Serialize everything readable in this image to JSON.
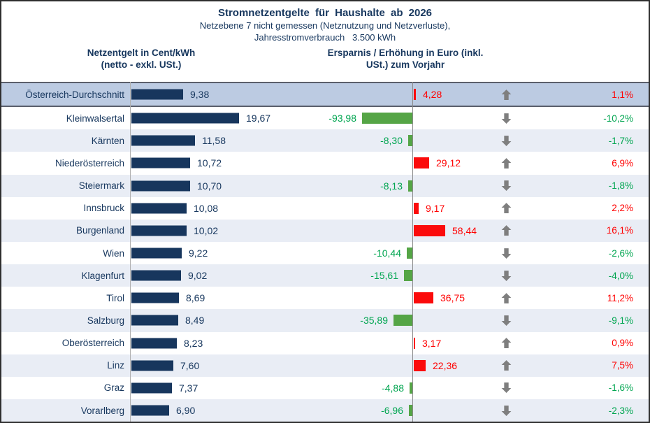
{
  "header": {
    "title": "Stromnetzentgelte für Haushalte ab 2026",
    "subtitle_line1": "Netzebene 7 nicht gemessen (Netznutzung und Netzverluste),",
    "subtitle_line2": "Jahresstromverbrauch   3.500 kWh",
    "left_col_header_line1": "Netzentgelt in Cent/kWh",
    "left_col_header_line2": "(netto - exkl. USt.)",
    "right_col_header_line1": "Ersparnis / Erhöhung in Euro (inkl.",
    "right_col_header_line2": "USt.) zum Vorjahr"
  },
  "colors": {
    "navy_text": "#17375E",
    "bar_navy": "#17365D",
    "red": "#FF0000",
    "green_bar": "#55A546",
    "green_text": "#00A550",
    "arrow_gray": "#7F7F7F",
    "highlight_row_bg": "#BCCBE2",
    "alt_row_bg": "#E9EDF5"
  },
  "chart_data": {
    "type": "bar",
    "title": "Stromnetzentgelte für Haushalte ab 2026",
    "subtitle": "Netzebene 7 nicht gemessen (Netznutzung und Netzverluste), Jahresstromverbrauch 3.500 kWh",
    "left_series_label": "Netzentgelt in Cent/kWh (netto - exkl. USt.)",
    "right_series_label": "Ersparnis / Erhöhung in Euro (inkl. USt.) zum Vorjahr",
    "legend_position": "none",
    "grid": false,
    "rows": [
      {
        "label": "Österreich-Durchschnitt",
        "value": "9,38",
        "value_num": 9.38,
        "delta": "4,28",
        "delta_num": 4.28,
        "pct": "1,1%",
        "direction": "up",
        "highlight": true
      },
      {
        "label": "Kleinwalsertal",
        "value": "19,67",
        "value_num": 19.67,
        "delta": "-93,98",
        "delta_num": -93.98,
        "pct": "-10,2%",
        "direction": "down",
        "highlight": false
      },
      {
        "label": "Kärnten",
        "value": "11,58",
        "value_num": 11.58,
        "delta": "-8,30",
        "delta_num": -8.3,
        "pct": "-1,7%",
        "direction": "down",
        "highlight": false
      },
      {
        "label": "Niederösterreich",
        "value": "10,72",
        "value_num": 10.72,
        "delta": "29,12",
        "delta_num": 29.12,
        "pct": "6,9%",
        "direction": "up",
        "highlight": false
      },
      {
        "label": "Steiermark",
        "value": "10,70",
        "value_num": 10.7,
        "delta": "-8,13",
        "delta_num": -8.13,
        "pct": "-1,8%",
        "direction": "down",
        "highlight": false
      },
      {
        "label": "Innsbruck",
        "value": "10,08",
        "value_num": 10.08,
        "delta": "9,17",
        "delta_num": 9.17,
        "pct": "2,2%",
        "direction": "up",
        "highlight": false
      },
      {
        "label": "Burgenland",
        "value": "10,02",
        "value_num": 10.02,
        "delta": "58,44",
        "delta_num": 58.44,
        "pct": "16,1%",
        "direction": "up",
        "highlight": false
      },
      {
        "label": "Wien",
        "value": "9,22",
        "value_num": 9.22,
        "delta": "-10,44",
        "delta_num": -10.44,
        "pct": "-2,6%",
        "direction": "down",
        "highlight": false
      },
      {
        "label": "Klagenfurt",
        "value": "9,02",
        "value_num": 9.02,
        "delta": "-15,61",
        "delta_num": -15.61,
        "pct": "-4,0%",
        "direction": "down",
        "highlight": false
      },
      {
        "label": "Tirol",
        "value": "8,69",
        "value_num": 8.69,
        "delta": "36,75",
        "delta_num": 36.75,
        "pct": "11,2%",
        "direction": "up",
        "highlight": false
      },
      {
        "label": "Salzburg",
        "value": "8,49",
        "value_num": 8.49,
        "delta": "-35,89",
        "delta_num": -35.89,
        "pct": "-9,1%",
        "direction": "down",
        "highlight": false
      },
      {
        "label": "Oberösterreich",
        "value": "8,23",
        "value_num": 8.23,
        "delta": "3,17",
        "delta_num": 3.17,
        "pct": "0,9%",
        "direction": "up",
        "highlight": false
      },
      {
        "label": "Linz",
        "value": "7,60",
        "value_num": 7.6,
        "delta": "22,36",
        "delta_num": 22.36,
        "pct": "7,5%",
        "direction": "up",
        "highlight": false
      },
      {
        "label": "Graz",
        "value": "7,37",
        "value_num": 7.37,
        "delta": "-4,88",
        "delta_num": -4.88,
        "pct": "-1,6%",
        "direction": "down",
        "highlight": false
      },
      {
        "label": "Vorarlberg",
        "value": "6,90",
        "value_num": 6.9,
        "delta": "-6,96",
        "delta_num": -6.96,
        "pct": "-2,3%",
        "direction": "down",
        "highlight": false
      }
    ]
  }
}
